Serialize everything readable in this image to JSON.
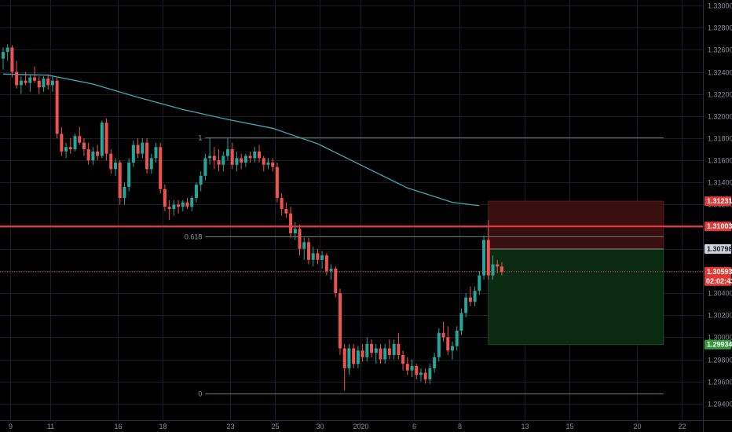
{
  "chart_data": {
    "type": "candlestick",
    "colors": {
      "background": "#000000",
      "grid": "#1a1d26",
      "up": "#26a69a",
      "down": "#ef5350",
      "moving_average": "#3fa7b5",
      "fib_line": "#607d7a",
      "resistance_line": "#f23645",
      "stop_zone": "#3a0f10",
      "target_zone": "#0b2a12",
      "axis_text": "#8b8e97"
    },
    "y_axis": {
      "range": [
        1.2925,
        1.3305
      ],
      "tick_values": [
        1.294,
        1.296,
        1.298,
        1.3,
        1.302,
        1.304,
        1.306,
        1.308,
        1.31,
        1.312,
        1.314,
        1.316,
        1.318,
        1.32,
        1.322,
        1.324,
        1.326,
        1.328,
        1.33
      ],
      "tick_labels": [
        "1.29400",
        "1.29600",
        "1.29800",
        "1.30000",
        "1.30200",
        "1.30400",
        "1.30600",
        "1.30800",
        "1.31000",
        "1.31200",
        "1.31400",
        "1.31600",
        "1.31800",
        "1.32000",
        "1.32200",
        "1.32400",
        "1.32600",
        "1.32800",
        "1.33000"
      ]
    },
    "x_axis": {
      "range": [
        0,
        152
      ],
      "ticks": [
        {
          "x": 1.5,
          "label": "9"
        },
        {
          "x": 10.5,
          "label": "11"
        },
        {
          "x": 25.5,
          "label": "16"
        },
        {
          "x": 35.5,
          "label": "18"
        },
        {
          "x": 50.5,
          "label": "23"
        },
        {
          "x": 60.5,
          "label": "25"
        },
        {
          "x": 70.5,
          "label": "30"
        },
        {
          "x": 79.5,
          "label": "2020"
        },
        {
          "x": 91.5,
          "label": "6"
        },
        {
          "x": 101.5,
          "label": "8"
        },
        {
          "x": 116,
          "label": "13"
        },
        {
          "x": 126,
          "label": "15"
        },
        {
          "x": 141,
          "label": "20"
        },
        {
          "x": 151,
          "label": "22"
        }
      ]
    },
    "candles_ohlc": [
      [
        1.3252,
        1.3262,
        1.3242,
        1.3258
      ],
      [
        1.3258,
        1.3265,
        1.325,
        1.3262
      ],
      [
        1.3262,
        1.3264,
        1.3235,
        1.324
      ],
      [
        1.324,
        1.325,
        1.3225,
        1.3228
      ],
      [
        1.3228,
        1.3236,
        1.322,
        1.3232
      ],
      [
        1.3232,
        1.324,
        1.3228,
        1.323
      ],
      [
        1.323,
        1.3238,
        1.3222,
        1.3235
      ],
      [
        1.3235,
        1.3245,
        1.323,
        1.3232
      ],
      [
        1.3232,
        1.3236,
        1.322,
        1.3226
      ],
      [
        1.3226,
        1.3236,
        1.3222,
        1.3234
      ],
      [
        1.3234,
        1.3238,
        1.3224,
        1.3228
      ],
      [
        1.3228,
        1.3236,
        1.3222,
        1.3232
      ],
      [
        1.3232,
        1.3235,
        1.318,
        1.3184
      ],
      [
        1.3184,
        1.319,
        1.3164,
        1.3168
      ],
      [
        1.3168,
        1.3176,
        1.3162,
        1.3172
      ],
      [
        1.3172,
        1.318,
        1.3166,
        1.317
      ],
      [
        1.317,
        1.3184,
        1.3168,
        1.3182
      ],
      [
        1.3182,
        1.319,
        1.3174,
        1.3176
      ],
      [
        1.3176,
        1.318,
        1.3164,
        1.317
      ],
      [
        1.317,
        1.3176,
        1.3156,
        1.316
      ],
      [
        1.316,
        1.3172,
        1.3156,
        1.3168
      ],
      [
        1.3168,
        1.3174,
        1.316,
        1.3164
      ],
      [
        1.3164,
        1.3196,
        1.3162,
        1.3194
      ],
      [
        1.3194,
        1.3198,
        1.316,
        1.3166
      ],
      [
        1.3166,
        1.317,
        1.3148,
        1.3152
      ],
      [
        1.3152,
        1.3162,
        1.3146,
        1.3158
      ],
      [
        1.3158,
        1.316,
        1.312,
        1.3126
      ],
      [
        1.3126,
        1.314,
        1.312,
        1.3136
      ],
      [
        1.3136,
        1.3162,
        1.3132,
        1.3158
      ],
      [
        1.3158,
        1.3178,
        1.3154,
        1.3174
      ],
      [
        1.3174,
        1.318,
        1.3162,
        1.3166
      ],
      [
        1.3166,
        1.318,
        1.3162,
        1.3176
      ],
      [
        1.3176,
        1.318,
        1.3148,
        1.3152
      ],
      [
        1.3152,
        1.3166,
        1.3148,
        1.3162
      ],
      [
        1.3162,
        1.3176,
        1.3158,
        1.3172
      ],
      [
        1.3172,
        1.3176,
        1.313,
        1.3134
      ],
      [
        1.3134,
        1.3138,
        1.3114,
        1.3118
      ],
      [
        1.3118,
        1.3124,
        1.3106,
        1.3116
      ],
      [
        1.3116,
        1.3124,
        1.311,
        1.312
      ],
      [
        1.312,
        1.3124,
        1.3112,
        1.3118
      ],
      [
        1.3118,
        1.3124,
        1.3114,
        1.3122
      ],
      [
        1.3122,
        1.3126,
        1.3116,
        1.3118
      ],
      [
        1.3118,
        1.3128,
        1.3114,
        1.3126
      ],
      [
        1.3126,
        1.314,
        1.3122,
        1.3138
      ],
      [
        1.3138,
        1.315,
        1.3132,
        1.3146
      ],
      [
        1.3146,
        1.3166,
        1.3142,
        1.3162
      ],
      [
        1.3162,
        1.318,
        1.3156,
        1.3164
      ],
      [
        1.3164,
        1.3172,
        1.3152,
        1.316
      ],
      [
        1.316,
        1.317,
        1.315,
        1.3156
      ],
      [
        1.3156,
        1.3168,
        1.315,
        1.3164
      ],
      [
        1.3164,
        1.318,
        1.316,
        1.317
      ],
      [
        1.317,
        1.3176,
        1.3152,
        1.3156
      ],
      [
        1.3156,
        1.3168,
        1.315,
        1.3162
      ],
      [
        1.3162,
        1.3166,
        1.3152,
        1.3158
      ],
      [
        1.3158,
        1.3166,
        1.3154,
        1.3164
      ],
      [
        1.3164,
        1.3168,
        1.3158,
        1.3162
      ],
      [
        1.3162,
        1.3172,
        1.3158,
        1.3168
      ],
      [
        1.3168,
        1.3174,
        1.3158,
        1.3162
      ],
      [
        1.3162,
        1.3164,
        1.315,
        1.3156
      ],
      [
        1.3156,
        1.3162,
        1.3152,
        1.3158
      ],
      [
        1.3158,
        1.3162,
        1.315,
        1.3154
      ],
      [
        1.3154,
        1.3158,
        1.3122,
        1.3126
      ],
      [
        1.3126,
        1.313,
        1.311,
        1.3116
      ],
      [
        1.3116,
        1.3122,
        1.3108,
        1.3112
      ],
      [
        1.3112,
        1.3118,
        1.309,
        1.3094
      ],
      [
        1.3094,
        1.3104,
        1.3088,
        1.3098
      ],
      [
        1.3098,
        1.3102,
        1.3074,
        1.308
      ],
      [
        1.308,
        1.309,
        1.307,
        1.3086
      ],
      [
        1.3086,
        1.309,
        1.3066,
        1.307
      ],
      [
        1.307,
        1.3082,
        1.3064,
        1.3076
      ],
      [
        1.3076,
        1.308,
        1.3066,
        1.307
      ],
      [
        1.307,
        1.3078,
        1.3062,
        1.3074
      ],
      [
        1.3074,
        1.3076,
        1.3056,
        1.306
      ],
      [
        1.306,
        1.3066,
        1.3052,
        1.3062
      ],
      [
        1.3062,
        1.3064,
        1.3036,
        1.304
      ],
      [
        1.304,
        1.3044,
        1.2984,
        1.299
      ],
      [
        1.299,
        1.2994,
        1.2952,
        1.2972
      ],
      [
        1.2972,
        1.2994,
        1.2966,
        1.299
      ],
      [
        1.299,
        1.2994,
        1.2972,
        1.2976
      ],
      [
        1.2976,
        1.2992,
        1.2972,
        1.2988
      ],
      [
        1.2988,
        1.2994,
        1.2978,
        1.2982
      ],
      [
        1.2982,
        1.3,
        1.2978,
        1.2994
      ],
      [
        1.2994,
        1.2998,
        1.2982,
        1.2986
      ],
      [
        1.2986,
        1.2994,
        1.2976,
        1.299
      ],
      [
        1.299,
        1.2994,
        1.2976,
        1.298
      ],
      [
        1.298,
        1.2994,
        1.2976,
        1.299
      ],
      [
        1.299,
        1.2998,
        1.298,
        1.2984
      ],
      [
        1.2984,
        1.2998,
        1.298,
        1.2994
      ],
      [
        1.2994,
        1.3004,
        1.298,
        1.2984
      ],
      [
        1.2984,
        1.2988,
        1.297,
        1.2976
      ],
      [
        1.2976,
        1.2982,
        1.2966,
        1.297
      ],
      [
        1.297,
        1.298,
        1.2964,
        1.2974
      ],
      [
        1.2974,
        1.2976,
        1.2962,
        1.2966
      ],
      [
        1.2966,
        1.2972,
        1.296,
        1.2968
      ],
      [
        1.2968,
        1.2972,
        1.2958,
        1.2962
      ],
      [
        1.2962,
        1.2976,
        1.2958,
        1.2972
      ],
      [
        1.2972,
        1.2986,
        1.2968,
        1.2982
      ],
      [
        1.2982,
        1.3008,
        1.2978,
        1.3004
      ],
      [
        1.3004,
        1.3014,
        1.2996,
        1.3
      ],
      [
        1.3,
        1.301,
        1.2984,
        1.2988
      ],
      [
        1.2988,
        1.2996,
        1.298,
        1.2992
      ],
      [
        1.2992,
        1.301,
        1.2988,
        1.3006
      ],
      [
        1.3006,
        1.3026,
        1.3002,
        1.3022
      ],
      [
        1.3022,
        1.304,
        1.3018,
        1.3036
      ],
      [
        1.3036,
        1.3046,
        1.3028,
        1.3032
      ],
      [
        1.3032,
        1.3046,
        1.3028,
        1.3042
      ],
      [
        1.3042,
        1.306,
        1.3038,
        1.3056
      ],
      [
        1.3056,
        1.3092,
        1.3052,
        1.3088
      ],
      [
        1.3088,
        1.3106,
        1.3052,
        1.3056
      ],
      [
        1.3056,
        1.3074,
        1.3052,
        1.3066
      ],
      [
        1.3066,
        1.307,
        1.3058,
        1.3064
      ],
      [
        1.3064,
        1.3068,
        1.3056,
        1.3059
      ]
    ],
    "moving_average": {
      "x": [
        0,
        10,
        20,
        30,
        40,
        50,
        60,
        70,
        80,
        90,
        100,
        106
      ],
      "values": [
        1.3238,
        1.3237,
        1.3229,
        1.3217,
        1.3206,
        1.3197,
        1.3189,
        1.3175,
        1.3155,
        1.3135,
        1.3122,
        1.3119
      ]
    },
    "fibonacci": {
      "x_start": 45,
      "x_end": 147,
      "levels": [
        {
          "label": "1",
          "value": 1.3181
        },
        {
          "label": "0.618",
          "value": 1.3091
        },
        {
          "label": "0",
          "value": 1.2949
        }
      ]
    },
    "resistance_line": {
      "value": 1.31003
    },
    "current_price_line": {
      "value": 1.30593
    },
    "position": {
      "x_start": 108,
      "x_end": 147,
      "entry": 1.30798,
      "stop": 1.31231,
      "target": 1.29934
    },
    "price_badges": [
      {
        "value": 1.31231,
        "label": "1.31231",
        "bg": "#e53935",
        "fg": "#ffffff"
      },
      {
        "value": 1.31003,
        "label": "1.31003",
        "bg": "#e53935",
        "fg": "#ffffff"
      },
      {
        "value": 1.30798,
        "label": "1.30798",
        "bg": "#d1d4dc",
        "fg": "#131722"
      },
      {
        "value": 1.30593,
        "label": "1.30593",
        "bg": "#e53935",
        "fg": "#ffffff"
      },
      {
        "value": 1.29934,
        "label": "1.29934",
        "bg": "#2e9d3a",
        "fg": "#ffffff"
      }
    ],
    "countdown": {
      "label": "02:02:43"
    }
  }
}
